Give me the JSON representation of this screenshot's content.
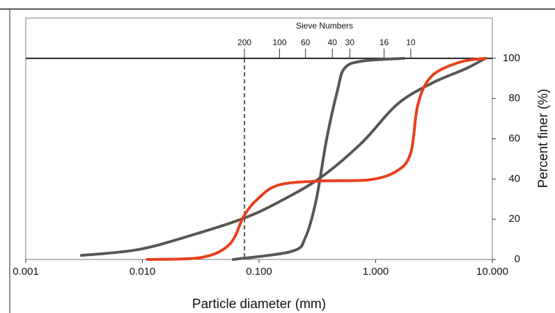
{
  "chart_data": {
    "type": "line",
    "xscale": "log",
    "top_axis_label": "Sieve Numbers",
    "xlabel": "Particle diameter (mm)",
    "ylabel": "Percent finer (%)",
    "xlim": [
      0.001,
      10
    ],
    "ylim": [
      0,
      120
    ],
    "xticks": [
      {
        "value": 0.001,
        "label": "0.001"
      },
      {
        "value": 0.01,
        "label": "0.010"
      },
      {
        "value": 0.1,
        "label": "0.100"
      },
      {
        "value": 1,
        "label": "1.000"
      },
      {
        "value": 10,
        "label": "10.000"
      }
    ],
    "yticks": [
      0,
      20,
      40,
      60,
      80,
      100
    ],
    "sieve_ticks": [
      {
        "value": 0.075,
        "label": "200"
      },
      {
        "value": 0.15,
        "label": "100"
      },
      {
        "value": 0.25,
        "label": "60"
      },
      {
        "value": 0.425,
        "label": "40"
      },
      {
        "value": 0.6,
        "label": "30"
      },
      {
        "value": 1.18,
        "label": "16"
      },
      {
        "value": 2.0,
        "label": "10"
      }
    ],
    "series": [
      {
        "color": "#5a5551",
        "x": [
          0.06,
          0.19,
          0.25,
          0.31,
          0.38,
          0.47,
          0.54,
          0.76,
          1.75
        ],
        "values": [
          0,
          4,
          11,
          30,
          60,
          84,
          95,
          98.6,
          100
        ]
      },
      {
        "color": "#5a5551",
        "x": [
          0.003,
          0.0094,
          0.028,
          0.074,
          0.147,
          0.335,
          0.76,
          1.52,
          3.0,
          6.0,
          8.7
        ],
        "values": [
          2,
          5,
          12.5,
          20.5,
          28.5,
          40.6,
          58,
          77,
          87.5,
          95,
          100
        ]
      },
      {
        "color": "#e8401c",
        "x": [
          0.011,
          0.032,
          0.056,
          0.074,
          0.097,
          0.147,
          0.335,
          0.88,
          1.52,
          2.0,
          2.3,
          3.0,
          5.2,
          8.7
        ],
        "values": [
          0,
          1,
          7.6,
          21.5,
          30,
          37,
          39,
          39.6,
          44,
          53,
          77,
          91,
          98,
          100
        ]
      }
    ]
  }
}
